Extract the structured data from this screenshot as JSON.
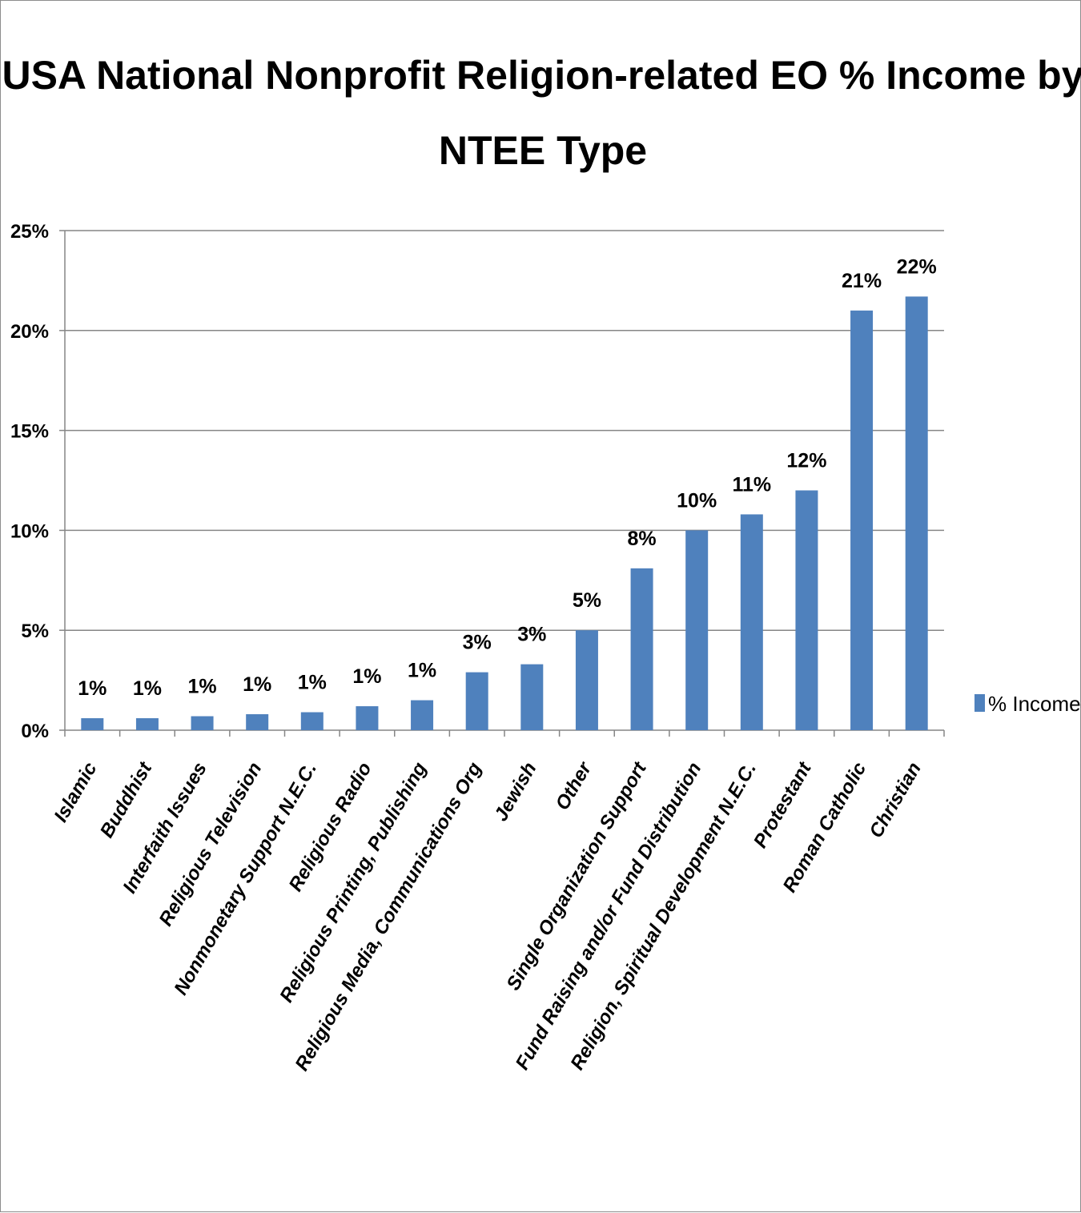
{
  "chart_data": {
    "type": "bar",
    "title_lines": [
      "USA National Nonprofit Religion-related EO % Income by",
      "NTEE Type"
    ],
    "categories": [
      "Islamic",
      "Buddhist",
      "Interfaith Issues",
      "Religious Television",
      "Nonmonetary Support N.E.C.",
      "Religious Radio",
      "Religious Printing, Publishing",
      "Religious Media, Communications Org",
      "Jewish",
      "Other",
      "Single Organization Support",
      "Fund Raising and/or Fund Distribution",
      "Religion, Spiritual Development N.E.C.",
      "Protestant",
      "Roman Catholic",
      "Christian"
    ],
    "series": [
      {
        "name": "% Income",
        "color": "#4f81bd",
        "values": [
          0.6,
          0.6,
          0.7,
          0.8,
          0.9,
          1.2,
          1.5,
          2.9,
          3.3,
          5.0,
          8.1,
          10.0,
          10.8,
          12.0,
          21.0,
          21.7
        ],
        "labels": [
          "1%",
          "1%",
          "1%",
          "1%",
          "1%",
          "1%",
          "1%",
          "3%",
          "3%",
          "5%",
          "8%",
          "10%",
          "11%",
          "12%",
          "21%",
          "22%"
        ]
      }
    ],
    "ylim": [
      0,
      25
    ],
    "yticks": [
      0,
      5,
      10,
      15,
      20,
      25
    ],
    "ytick_labels": [
      "0%",
      "5%",
      "10%",
      "15%",
      "20%",
      "25%"
    ],
    "grid": true,
    "legend": "right"
  }
}
